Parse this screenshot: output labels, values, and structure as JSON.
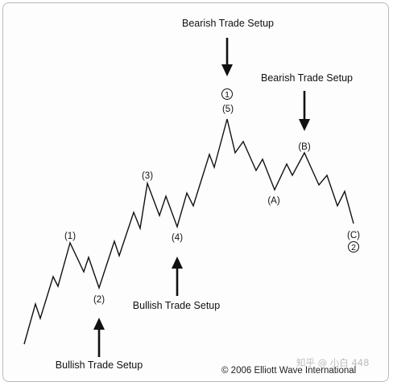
{
  "setups": {
    "bearish_top": "Bearish Trade Setup",
    "bearish_right": "Bearish Trade Setup",
    "bullish_mid": "Bullish Trade Setup",
    "bullish_bottom": "Bullish Trade Setup"
  },
  "waves": {
    "w1": "(1)",
    "w2": "(2)",
    "w3": "(3)",
    "w4": "(4)",
    "w5": "(5)",
    "wa": "(A)",
    "wb": "(B)",
    "wc": "(C)",
    "circled_1": "1",
    "circled_2": "2"
  },
  "footer": {
    "copyright": "© 2006 Elliott Wave International",
    "watermark": "知乎 @ 小白 448"
  }
}
